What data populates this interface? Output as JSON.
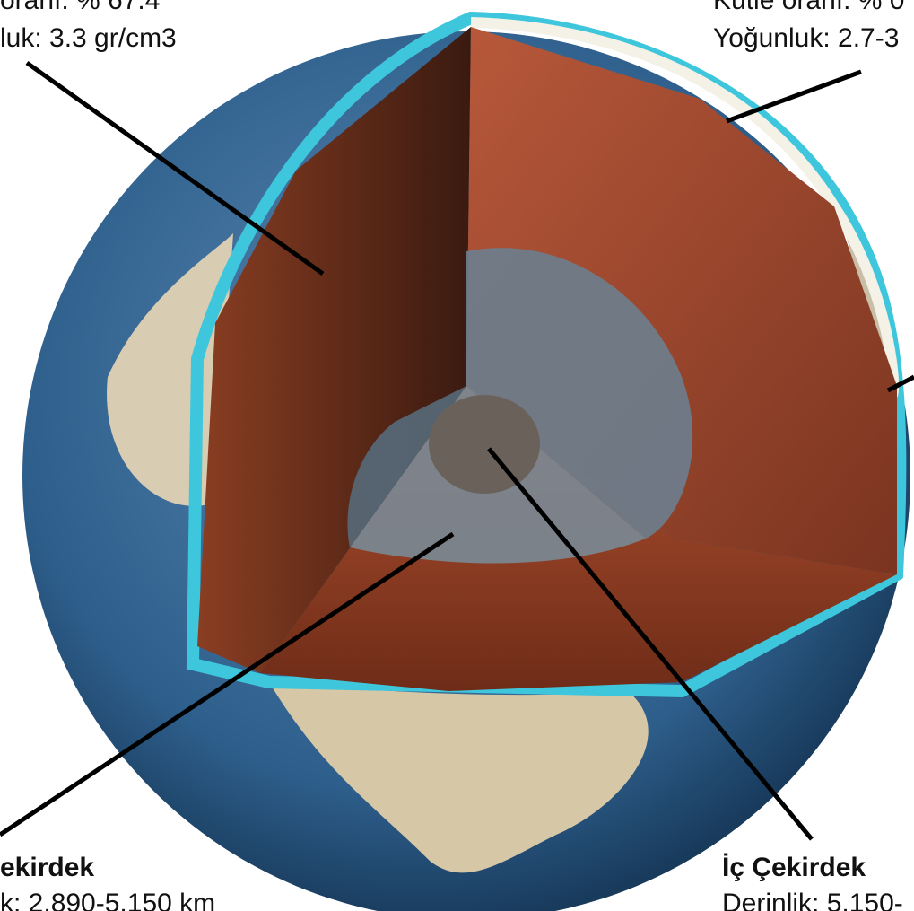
{
  "labels": {
    "mantle": {
      "line1": "oranı: % 67.4",
      "line2": "luk: 3.3 gr/cm3"
    },
    "crust": {
      "line1": "Kütle oranı: % 0",
      "line2": "Yoğunluk: 2.7-3"
    },
    "outer_core": {
      "title": "ekirdek",
      "line1": "k: 2.890-5.150 km"
    },
    "inner_core": {
      "title": "İç Çekirdek",
      "line1": "Derinlik: 5.150-"
    }
  }
}
